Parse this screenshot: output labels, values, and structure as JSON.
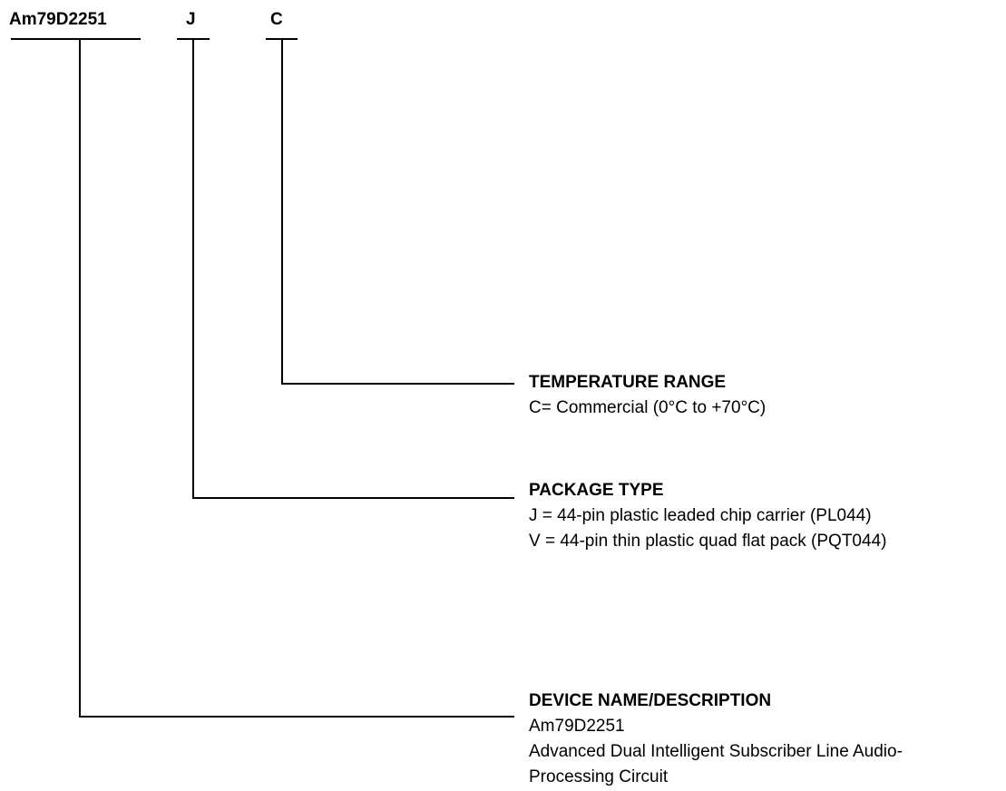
{
  "codes": [
    {
      "label": "Am79D2251"
    },
    {
      "label": "J"
    },
    {
      "label": "C"
    }
  ],
  "fields": [
    {
      "title": "TEMPERATURE RANGE",
      "lines": [
        "C= Commercial (0°C to +70°C)"
      ]
    },
    {
      "title": "PACKAGE TYPE",
      "lines": [
        "J = 44-pin plastic leaded chip carrier (PL044)",
        "V = 44-pin thin plastic quad flat pack (PQT044)"
      ]
    },
    {
      "title": "DEVICE NAME/DESCRIPTION",
      "lines": [
        "Am79D2251",
        "Advanced Dual Intelligent Subscriber Line Audio-",
        "Processing Circuit"
      ]
    }
  ]
}
